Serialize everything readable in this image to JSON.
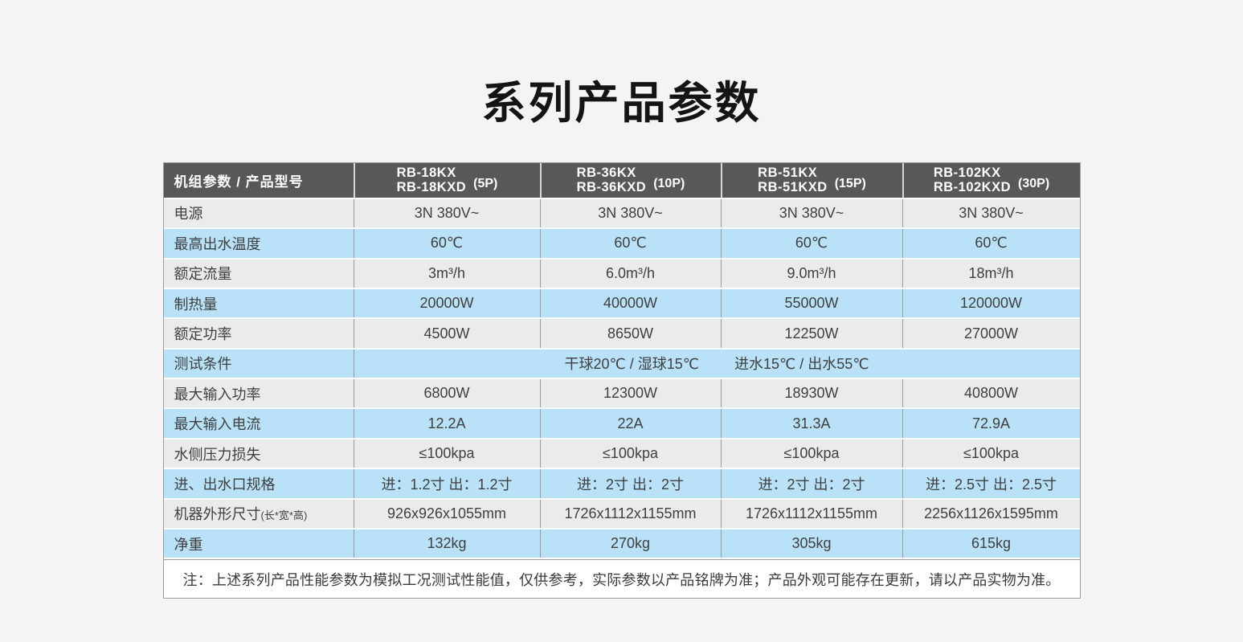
{
  "page": {
    "title": "系列产品参数"
  },
  "colors": {
    "page_bg": "#f4f4f4",
    "header_bg": "#595757",
    "header_text": "#ffffff",
    "row_blue": "#b9e2f8",
    "row_gray": "#ebebeb",
    "border_vertical": "#9c9c9c",
    "row_separator": "#ffffff",
    "note_bg": "#ffffff",
    "title_color": "#141414"
  },
  "table": {
    "header": {
      "corner_label": "机组参数 / 产品型号",
      "models": [
        {
          "line1": "RB-18KX",
          "line2": "RB-18KXD",
          "hp": "(5P)"
        },
        {
          "line1": "RB-36KX",
          "line2": "RB-36KXD",
          "hp": "(10P)"
        },
        {
          "line1": "RB-51KX",
          "line2": "RB-51KXD",
          "hp": "(15P)"
        },
        {
          "line1": "RB-102KX",
          "line2": "RB-102KXD",
          "hp": "(30P)"
        }
      ]
    },
    "rows": [
      {
        "label": "电源",
        "tone": "gray",
        "values": [
          "3N 380V~",
          "3N 380V~",
          "3N 380V~",
          "3N 380V~"
        ]
      },
      {
        "label": "最高出水温度",
        "tone": "blue",
        "values": [
          "60℃",
          "60℃",
          "60℃",
          "60℃"
        ]
      },
      {
        "label": "额定流量",
        "tone": "gray",
        "values": [
          "3m³/h",
          "6.0m³/h",
          "9.0m³/h",
          "18m³/h"
        ]
      },
      {
        "label": "制热量",
        "tone": "blue",
        "values": [
          "20000W",
          "40000W",
          "55000W",
          "120000W"
        ]
      },
      {
        "label": "额定功率",
        "tone": "gray",
        "values": [
          "4500W",
          "8650W",
          "12250W",
          "27000W"
        ]
      },
      {
        "label": "测试条件",
        "tone": "blue",
        "merged": true,
        "merged_parts": [
          "干球20℃ / 湿球15℃",
          "进水15℃ / 出水55℃"
        ]
      },
      {
        "label": "最大输入功率",
        "tone": "gray",
        "values": [
          "6800W",
          "12300W",
          "18930W",
          "40800W"
        ]
      },
      {
        "label": "最大输入电流",
        "tone": "blue",
        "values": [
          "12.2A",
          "22A",
          "31.3A",
          "72.9A"
        ]
      },
      {
        "label": "水侧压力损失",
        "tone": "gray",
        "values": [
          "≤100kpa",
          "≤100kpa",
          "≤100kpa",
          "≤100kpa"
        ]
      },
      {
        "label": "进、出水口规格",
        "tone": "blue",
        "values": [
          "进：1.2寸 出：1.2寸",
          "进：2寸 出：2寸",
          "进：2寸 出：2寸",
          "进：2.5寸 出：2.5寸"
        ]
      },
      {
        "label": "机器外形尺寸",
        "label_suffix": "(长*宽*高)",
        "tone": "gray",
        "values": [
          "926x926x1055mm",
          "1726x1112x1155mm",
          "1726x1112x1155mm",
          "2256x1126x1595mm"
        ]
      },
      {
        "label": "净重",
        "tone": "blue",
        "values": [
          "132kg",
          "270kg",
          "305kg",
          "615kg"
        ]
      }
    ],
    "note": "注：上述系列产品性能参数为模拟工况测试性能值，仅供参考，实际参数以产品铭牌为准；产品外观可能存在更新，请以产品实物为准。"
  }
}
